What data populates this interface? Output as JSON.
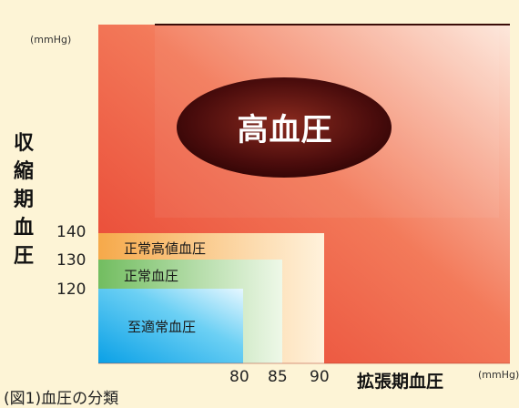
{
  "units": {
    "y": "(mmHg)",
    "x": "(mmHg)"
  },
  "axes": {
    "ylabel": "収縮期血圧",
    "xlabel": "拡張期血圧"
  },
  "yticks": [
    "140",
    "130",
    "120"
  ],
  "xticks": [
    "80",
    "85",
    "90"
  ],
  "regions": {
    "hypertension": "高血圧",
    "high_normal": "正常高値血圧",
    "normal": "正常血圧",
    "optimal": "至適常血圧"
  },
  "caption": "(図1)血圧の分類",
  "colors": {
    "hypertension_red": "#e63a2a",
    "high_normal_orange": "#f6b060",
    "normal_green": "#7ec46b",
    "optimal_blue": "#1aa9e6",
    "ellipse_dark": "#5a1010"
  }
}
